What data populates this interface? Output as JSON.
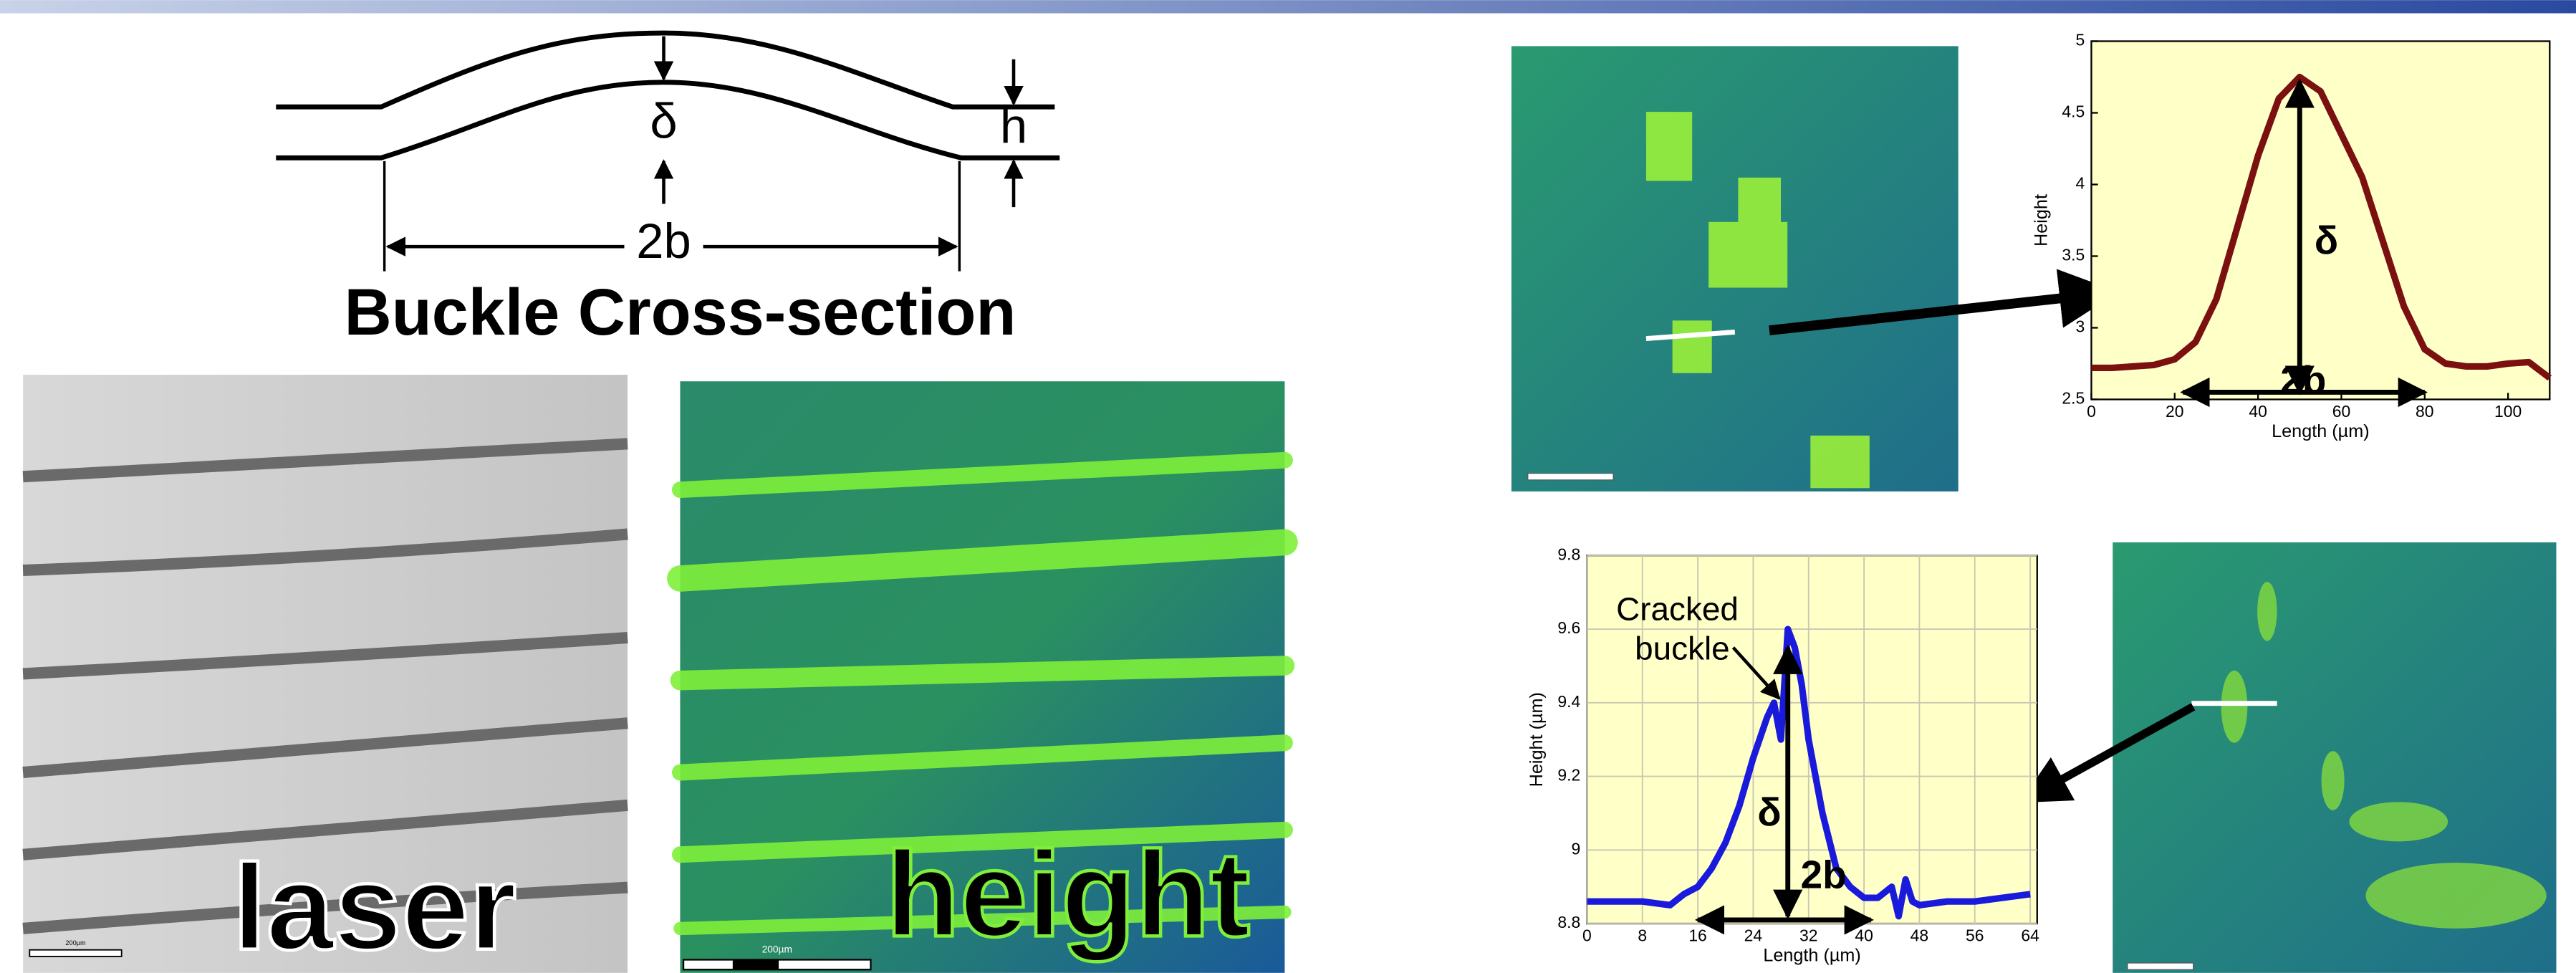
{
  "diagram": {
    "title": "Buckle Cross-section",
    "delta": "δ",
    "height": "h",
    "width": "2b"
  },
  "images": [
    {
      "label": "laser",
      "scale": "200µm"
    },
    {
      "label": "height",
      "scale": "200µm"
    }
  ],
  "chart_data": [
    {
      "type": "line",
      "y_label": "Height",
      "x_label": "Length (µm)",
      "annotations": [
        "δ",
        "2b"
      ],
      "x": [
        0,
        5,
        10,
        15,
        20,
        25,
        30,
        35,
        40,
        45,
        50,
        55,
        60,
        65,
        70,
        75,
        80,
        85,
        90,
        95,
        100,
        105,
        110
      ],
      "series": [
        {
          "color": "#7a1010",
          "values": [
            2.72,
            2.72,
            2.73,
            2.74,
            2.78,
            2.9,
            3.2,
            3.7,
            4.2,
            4.6,
            4.75,
            4.65,
            4.35,
            4.05,
            3.6,
            3.15,
            2.85,
            2.75,
            2.73,
            2.73,
            2.75,
            2.76,
            2.65
          ]
        }
      ],
      "xlim": [
        0,
        110
      ],
      "ylim": [
        2.5,
        5
      ],
      "xticks": [
        0,
        20,
        40,
        60,
        80,
        100
      ],
      "yticks": [
        2.5,
        3,
        3.5,
        4,
        4.5,
        5
      ],
      "grid": false
    },
    {
      "type": "line",
      "y_label": "Height (µm)",
      "x_label": "Length (µm)",
      "annotations": [
        "Cracked buckle",
        "δ",
        "2b"
      ],
      "x": [
        0,
        4,
        8,
        12,
        14,
        16,
        18,
        20,
        22,
        24,
        26,
        27,
        28,
        29,
        30,
        31,
        32,
        34,
        36,
        38,
        40,
        42,
        44,
        45,
        46,
        47,
        48,
        52,
        56,
        60,
        64
      ],
      "series": [
        {
          "color": "#1a1adc",
          "values": [
            8.86,
            8.86,
            8.86,
            8.85,
            8.88,
            8.9,
            8.95,
            9.02,
            9.12,
            9.25,
            9.36,
            9.4,
            9.3,
            9.6,
            9.55,
            9.45,
            9.3,
            9.1,
            8.95,
            8.9,
            8.87,
            8.87,
            8.9,
            8.82,
            8.92,
            8.86,
            8.85,
            8.86,
            8.86,
            8.87,
            8.88
          ]
        }
      ],
      "xlim": [
        0,
        65
      ],
      "ylim": [
        8.8,
        9.8
      ],
      "xticks": [
        0,
        8,
        16,
        24,
        32,
        40,
        48,
        56,
        64
      ],
      "yticks": [
        8.8,
        9,
        9.2,
        9.4,
        9.6,
        9.8
      ],
      "grid": true
    }
  ]
}
